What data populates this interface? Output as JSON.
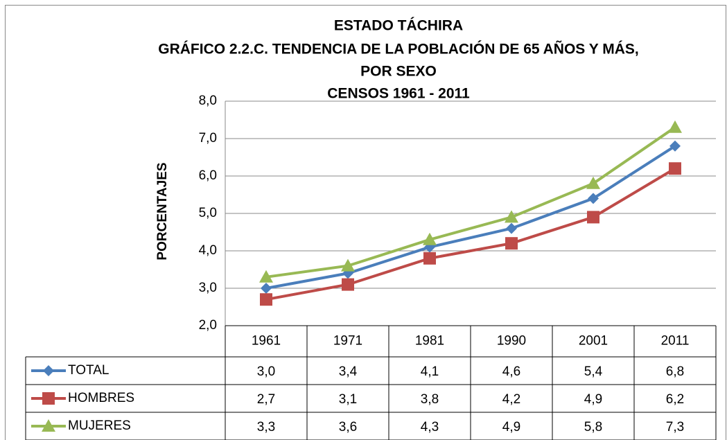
{
  "chart_data": {
    "type": "line",
    "title": [
      "ESTADO TÁCHIRA",
      "GRÁFICO 2.2.C. TENDENCIA DE LA POBLACIÓN DE 65 AÑOS Y MÁS,",
      "POR SEXO",
      "CENSOS 1961 - 2011"
    ],
    "y_label": "PORCENTAJES",
    "categories": [
      "1961",
      "1971",
      "1981",
      "1990",
      "2001",
      "2011"
    ],
    "series": [
      {
        "name": "TOTAL",
        "color": "#4a7ebb",
        "marker": "diamond",
        "values": [
          3.0,
          3.4,
          4.1,
          4.6,
          5.4,
          6.8
        ],
        "value_labels": [
          "3,0",
          "3,4",
          "4,1",
          "4,6",
          "5,4",
          "6,8"
        ]
      },
      {
        "name": "HOMBRES",
        "color": "#be4b48",
        "marker": "square",
        "values": [
          2.7,
          3.1,
          3.8,
          4.2,
          4.9,
          6.2
        ],
        "value_labels": [
          "2,7",
          "3,1",
          "3,8",
          "4,2",
          "4,9",
          "6,2"
        ]
      },
      {
        "name": "MUJERES",
        "color": "#98b954",
        "marker": "triangle",
        "values": [
          3.3,
          3.6,
          4.3,
          4.9,
          5.8,
          7.3
        ],
        "value_labels": [
          "3,3",
          "3,6",
          "4,3",
          "4,9",
          "5,8",
          "7,3"
        ]
      }
    ],
    "ylim": [
      2,
      8
    ],
    "yticks": [
      {
        "value": 2,
        "label": "2,0"
      },
      {
        "value": 3,
        "label": "3,0"
      },
      {
        "value": 4,
        "label": "4,0"
      },
      {
        "value": 5,
        "label": "5,0"
      },
      {
        "value": 6,
        "label": "6,0"
      },
      {
        "value": 7,
        "label": "7,0"
      },
      {
        "value": 8,
        "label": "8,0"
      }
    ],
    "grid": true
  }
}
